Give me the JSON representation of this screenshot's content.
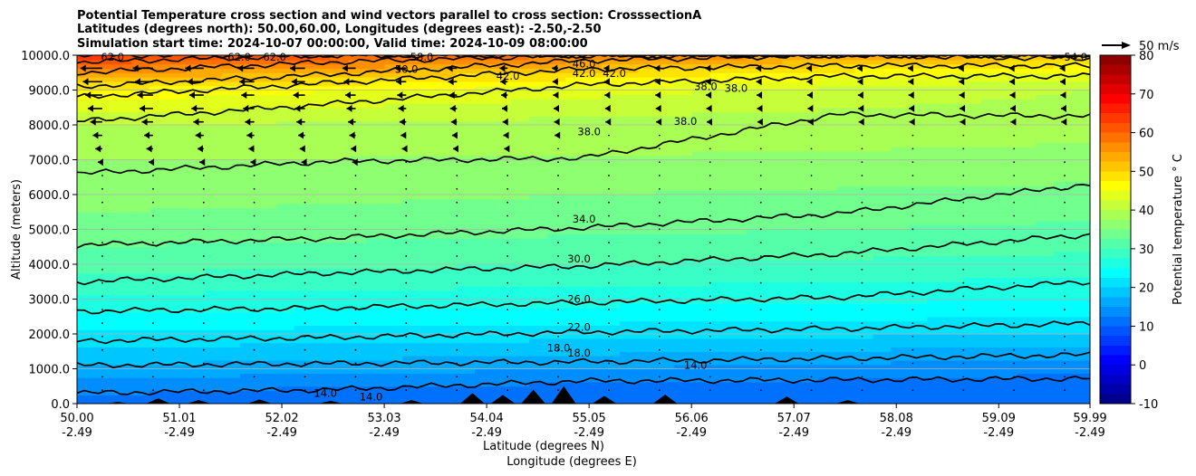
{
  "chart_data": {
    "type": "heatmap",
    "title_lines": [
      "Potential Temperature cross section and wind vectors parallel to cross section: CrosssectionA",
      "Latitudes (degrees north): 50.00,60.00, Longitudes (degrees east): -2.50,-2.50",
      "Simulation start time: 2024-10-07 00:00:00, Valid time: 2024-10-09 08:00:00"
    ],
    "ylabel": "Altitude (meters)",
    "xlabel_lines": [
      "Latitude (degrees N)",
      "Longitude (degrees E)"
    ],
    "colorbar_label": "Potential temperature ° C",
    "quiver_key_label": "50 m/s",
    "xlim": [
      50.0,
      59.99
    ],
    "ylim": [
      0,
      10000
    ],
    "y_ticks": [
      0,
      1000,
      2000,
      3000,
      4000,
      5000,
      6000,
      7000,
      8000,
      9000,
      10000
    ],
    "y_tick_labels": [
      "0.0",
      "1000.0",
      "2000.0",
      "3000.0",
      "4000.0",
      "5000.0",
      "6000.0",
      "7000.0",
      "8000.0",
      "9000.0",
      "10000.0"
    ],
    "x_ticks": [
      {
        "lat": 50.0,
        "lat_label": "50.00",
        "lon_label": "-2.49"
      },
      {
        "lat": 51.01,
        "lat_label": "51.01",
        "lon_label": "-2.49"
      },
      {
        "lat": 52.02,
        "lat_label": "52.02",
        "lon_label": "-2.49"
      },
      {
        "lat": 53.03,
        "lat_label": "53.03",
        "lon_label": "-2.49"
      },
      {
        "lat": 54.04,
        "lat_label": "54.04",
        "lon_label": "-2.49"
      },
      {
        "lat": 55.05,
        "lat_label": "55.05",
        "lon_label": "-2.49"
      },
      {
        "lat": 56.06,
        "lat_label": "56.06",
        "lon_label": "-2.49"
      },
      {
        "lat": 57.07,
        "lat_label": "57.07",
        "lon_label": "-2.49"
      },
      {
        "lat": 58.08,
        "lat_label": "58.08",
        "lon_label": "-2.49"
      },
      {
        "lat": 59.09,
        "lat_label": "59.09",
        "lon_label": "-2.49"
      },
      {
        "lat": 59.99,
        "lat_label": "59.99",
        "lon_label": "-2.49"
      }
    ],
    "colorbar_range": [
      -10,
      80
    ],
    "colorbar_ticks": [
      -10,
      0,
      10,
      20,
      30,
      40,
      50,
      60,
      70,
      80
    ],
    "grid_horizontal": true,
    "contour_levels": [
      {
        "level": 14.0,
        "label": "14.0",
        "alts": [
          300,
          400,
          650,
          680,
          720
        ]
      },
      {
        "level": 18.0,
        "label": "18.0",
        "alts": [
          1100,
          1150,
          1200,
          1300,
          1400
        ]
      },
      {
        "level": 22.0,
        "label": "22.0",
        "alts": [
          1800,
          1900,
          2050,
          2150,
          2300
        ]
      },
      {
        "level": 26.0,
        "label": "26.0",
        "alts": [
          2650,
          2750,
          2900,
          3050,
          3500
        ]
      },
      {
        "level": 30.0,
        "label": "30.0",
        "alts": [
          3500,
          3750,
          3950,
          4300,
          4850
        ]
      },
      {
        "level": 34.0,
        "label": "34.0",
        "alts": [
          4550,
          4750,
          5050,
          5450,
          6300
        ]
      },
      {
        "level": 38.0,
        "label": "38.0",
        "alts": [
          6600,
          6950,
          7050,
          8300,
          8250
        ]
      },
      {
        "level": 42.0,
        "label": "42.0",
        "alts": [
          8100,
          8600,
          9150,
          9400,
          9400
        ]
      },
      {
        "level": 46.0,
        "label": "46.0",
        "alts": [
          8800,
          9200,
          9600,
          9700,
          9700
        ]
      },
      {
        "level": 50.0,
        "label": "50.0",
        "alts": [
          9100,
          9450,
          9850,
          10000,
          9900
        ]
      },
      {
        "level": 54.0,
        "label": "54.0",
        "alts": [
          9500,
          9800,
          10000,
          10000,
          10000
        ]
      },
      {
        "level": 58.0,
        "label": "58.0",
        "alts": [
          9800,
          10000,
          10000,
          10000,
          10000
        ]
      },
      {
        "level": 62.0,
        "label": "62.0",
        "alts": [
          10000,
          10000,
          10000,
          10000,
          10000
        ]
      }
    ],
    "contour_label_positions": [
      {
        "label": "62.0",
        "lat": 50.35,
        "alt": 9950
      },
      {
        "label": "62.0",
        "lat": 51.6,
        "alt": 9950
      },
      {
        "label": "62.0",
        "lat": 51.95,
        "alt": 9950
      },
      {
        "label": "58.0",
        "lat": 53.4,
        "alt": 9950
      },
      {
        "label": "54.0",
        "lat": 59.85,
        "alt": 9950
      },
      {
        "label": "50.0",
        "lat": 53.25,
        "alt": 9600
      },
      {
        "label": "46.0",
        "lat": 55.0,
        "alt": 9750
      },
      {
        "label": "42.0",
        "lat": 55.0,
        "alt": 9480
      },
      {
        "label": "42.0",
        "lat": 55.3,
        "alt": 9480
      },
      {
        "label": "42.0",
        "lat": 54.25,
        "alt": 9400
      },
      {
        "label": "38.0",
        "lat": 56.2,
        "alt": 9100
      },
      {
        "label": "38.0",
        "lat": 56.5,
        "alt": 9050
      },
      {
        "label": "38.0",
        "lat": 56.0,
        "alt": 8100
      },
      {
        "label": "38.0",
        "lat": 55.05,
        "alt": 7800
      },
      {
        "label": "34.0",
        "lat": 55.0,
        "alt": 5300
      },
      {
        "label": "30.0",
        "lat": 54.95,
        "alt": 4150
      },
      {
        "label": "26.0",
        "lat": 54.95,
        "alt": 3000
      },
      {
        "label": "22.0",
        "lat": 54.95,
        "alt": 2200
      },
      {
        "label": "18.0",
        "lat": 54.75,
        "alt": 1600
      },
      {
        "label": "18.0",
        "lat": 54.95,
        "alt": 1450
      },
      {
        "label": "14.0",
        "lat": 56.1,
        "alt": 1100
      },
      {
        "label": "14.0",
        "lat": 52.45,
        "alt": 300
      },
      {
        "label": "14.0",
        "lat": 52.9,
        "alt": 200
      }
    ],
    "temperature_profile": {
      "alt": [
        0,
        500,
        1000,
        2000,
        3000,
        4000,
        5000,
        6000,
        7000,
        8000,
        9000,
        9500,
        10000
      ],
      "theta_south": [
        12,
        13,
        17,
        22,
        27,
        31,
        34,
        36,
        37.5,
        40,
        47,
        55,
        64
      ],
      "theta_north": [
        10,
        11,
        13,
        20,
        25,
        29,
        32,
        34,
        37,
        38,
        40,
        44,
        52
      ]
    },
    "orography": [
      {
        "lat": 50.4,
        "alt": 50
      },
      {
        "lat": 50.8,
        "alt": 150
      },
      {
        "lat": 51.2,
        "alt": 100
      },
      {
        "lat": 51.8,
        "alt": 120
      },
      {
        "lat": 52.5,
        "alt": 80
      },
      {
        "lat": 53.3,
        "alt": 100
      },
      {
        "lat": 53.9,
        "alt": 300
      },
      {
        "lat": 54.2,
        "alt": 250
      },
      {
        "lat": 54.5,
        "alt": 400
      },
      {
        "lat": 54.8,
        "alt": 500
      },
      {
        "lat": 55.2,
        "alt": 220
      },
      {
        "lat": 55.8,
        "alt": 260
      },
      {
        "lat": 57.0,
        "alt": 200
      },
      {
        "lat": 57.6,
        "alt": 100
      }
    ]
  }
}
